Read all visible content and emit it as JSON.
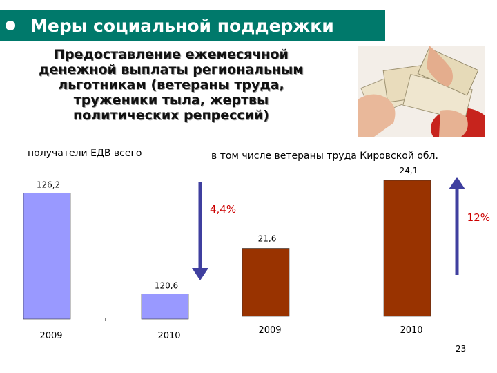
{
  "title": "Меры социальной поддержки",
  "subtitle_lines": [
    "Предоставление ежемесячной",
    "денежной выплаты региональным",
    "льготникам (ветераны труда,",
    "труженики тыла, жертвы",
    "политических репрессий)"
  ],
  "page_number": "23",
  "colors": {
    "title_bg": "#00796b",
    "group1_bar": "#9999ff",
    "group2_bar": "#993300",
    "arrow": "#3f3f9f",
    "change_label": "#cc0000"
  },
  "icons": {
    "photo": "money-in-hands-photo",
    "arrow_down": "arrow-down-icon",
    "arrow_up": "arrow-up-icon"
  },
  "chart_data": [
    {
      "type": "bar",
      "title": "получатели ЕДВ всего",
      "categories": [
        "2009",
        "2010"
      ],
      "values": [
        126.2,
        120.6
      ],
      "value_labels": [
        "126,2",
        "120,6"
      ],
      "change_label": "4,4%",
      "change_direction": "down"
    },
    {
      "type": "bar",
      "title": "в том числе ветераны труда Кировской обл.",
      "categories": [
        "2009",
        "2010"
      ],
      "values": [
        21.6,
        24.1
      ],
      "value_labels": [
        "21,6",
        "24,1"
      ],
      "change_label": "12%",
      "change_direction": "up"
    }
  ]
}
